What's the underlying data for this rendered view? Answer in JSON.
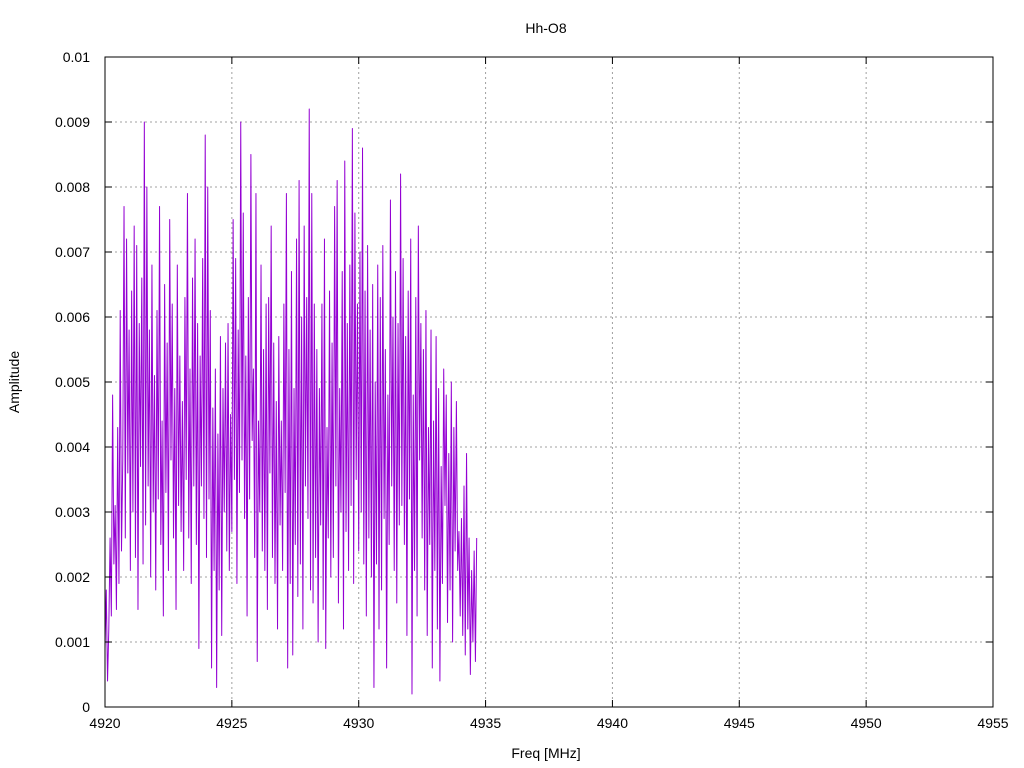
{
  "chart_data": {
    "type": "line",
    "title": "Hh-O8",
    "xlabel": "Freq [MHz]",
    "ylabel": "Amplitude",
    "xlim": [
      4920,
      4955
    ],
    "ylim": [
      0,
      0.01
    ],
    "grid": true,
    "legend": "none",
    "x_ticks": [
      "4920",
      "4925",
      "4930",
      "4935",
      "4940",
      "4945",
      "4950",
      "4955"
    ],
    "y_ticks": [
      "0",
      "0.001",
      "0.002",
      "0.003",
      "0.004",
      "0.005",
      "0.006",
      "0.007",
      "0.008",
      "0.009",
      "0.01"
    ],
    "series": [
      {
        "color": "#9400d3",
        "x_start": 4920.0,
        "x_step": 0.05,
        "values": [
          0.0009,
          0.0018,
          0.0004,
          0.0012,
          0.0026,
          0.0014,
          0.0048,
          0.0022,
          0.0031,
          0.0015,
          0.0043,
          0.0019,
          0.0061,
          0.0024,
          0.0038,
          0.0077,
          0.0026,
          0.0072,
          0.0036,
          0.0058,
          0.0021,
          0.0064,
          0.003,
          0.0074,
          0.0023,
          0.0071,
          0.0015,
          0.0059,
          0.0037,
          0.0066,
          0.0022,
          0.009,
          0.0028,
          0.008,
          0.0034,
          0.0058,
          0.002,
          0.0068,
          0.003,
          0.0051,
          0.0018,
          0.0061,
          0.0032,
          0.0077,
          0.0025,
          0.0044,
          0.0014,
          0.0065,
          0.0033,
          0.0056,
          0.0021,
          0.0075,
          0.0038,
          0.0062,
          0.0026,
          0.0049,
          0.0015,
          0.0068,
          0.0031,
          0.0054,
          0.0027,
          0.0047,
          0.0021,
          0.0063,
          0.0035,
          0.0079,
          0.0026,
          0.0052,
          0.0019,
          0.0066,
          0.0034,
          0.0072,
          0.0025,
          0.0059,
          0.0009,
          0.0054,
          0.0034,
          0.0069,
          0.0029,
          0.0088,
          0.0023,
          0.008,
          0.0032,
          0.0061,
          0.0006,
          0.0046,
          0.0021,
          0.0052,
          0.0003,
          0.0042,
          0.0018,
          0.0057,
          0.0011,
          0.0049,
          0.003,
          0.0056,
          0.0024,
          0.0059,
          0.0021,
          0.0045,
          0.0027,
          0.0075,
          0.0035,
          0.0069,
          0.0019,
          0.0058,
          0.0033,
          0.009,
          0.0038,
          0.0076,
          0.0029,
          0.0054,
          0.0014,
          0.0063,
          0.0032,
          0.0085,
          0.0041,
          0.0052,
          0.0023,
          0.0079,
          0.0007,
          0.0044,
          0.003,
          0.0068,
          0.0024,
          0.0055,
          0.0021,
          0.0062,
          0.0015,
          0.0063,
          0.0036,
          0.0074,
          0.0023,
          0.0056,
          0.0019,
          0.0047,
          0.0012,
          0.0057,
          0.0028,
          0.0044,
          0.0021,
          0.0062,
          0.0033,
          0.0079,
          0.0006,
          0.0055,
          0.0019,
          0.0067,
          0.0008,
          0.0049,
          0.0025,
          0.0072,
          0.0017,
          0.0081,
          0.0022,
          0.006,
          0.0012,
          0.0074,
          0.0034,
          0.0063,
          0.0029,
          0.0092,
          0.0018,
          0.0079,
          0.0016,
          0.0062,
          0.0023,
          0.0055,
          0.001,
          0.0049,
          0.0028,
          0.0062,
          0.0015,
          0.0072,
          0.0009,
          0.0043,
          0.0026,
          0.0064,
          0.002,
          0.0056,
          0.0023,
          0.0077,
          0.0034,
          0.0081,
          0.0016,
          0.0049,
          0.003,
          0.0067,
          0.0012,
          0.0084,
          0.0027,
          0.0059,
          0.0021,
          0.0068,
          0.0031,
          0.0089,
          0.0019,
          0.0076,
          0.0035,
          0.0062,
          0.0024,
          0.007,
          0.003,
          0.0086,
          0.0022,
          0.0064,
          0.0014,
          0.0071,
          0.0026,
          0.0058,
          0.002,
          0.0065,
          0.0003,
          0.005,
          0.0022,
          0.0068,
          0.0012,
          0.0063,
          0.0018,
          0.0071,
          0.0029,
          0.0055,
          0.0006,
          0.0048,
          0.0025,
          0.0078,
          0.0034,
          0.006,
          0.0021,
          0.0067,
          0.0016,
          0.0059,
          0.0028,
          0.0082,
          0.0031,
          0.0069,
          0.0025,
          0.0057,
          0.0011,
          0.0064,
          0.0032,
          0.0072,
          0.0002,
          0.0048,
          0.0021,
          0.0063,
          0.0014,
          0.0074,
          0.0038,
          0.0059,
          0.0026,
          0.0055,
          0.0018,
          0.0061,
          0.0011,
          0.0043,
          0.0025,
          0.0058,
          0.0006,
          0.0044,
          0.0021,
          0.0057,
          0.0012,
          0.0049,
          0.0004,
          0.0037,
          0.0019,
          0.0052,
          0.0031,
          0.0048,
          0.0013,
          0.0039,
          0.0018,
          0.005,
          0.001,
          0.0043,
          0.0024,
          0.0047,
          0.0021,
          0.0027,
          0.0014,
          0.0029,
          0.0011,
          0.0034,
          0.0008,
          0.0039,
          0.0012,
          0.0026,
          0.0005,
          0.0021,
          0.001,
          0.0024,
          0.0007,
          0.0026
        ]
      }
    ]
  }
}
